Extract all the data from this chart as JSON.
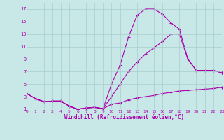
{
  "bg_color": "#c8e8e8",
  "grid_color": "#a8cccc",
  "line_color": "#aa00aa",
  "xlabel": "Windchill (Refroidissement éolien,°C)",
  "xlim": [
    0,
    23
  ],
  "ylim": [
    1,
    18
  ],
  "xticks": [
    0,
    1,
    2,
    3,
    4,
    5,
    6,
    7,
    8,
    9,
    10,
    11,
    12,
    13,
    14,
    15,
    16,
    17,
    18,
    19,
    20,
    21,
    22,
    23
  ],
  "yticks": [
    1,
    3,
    5,
    7,
    9,
    11,
    13,
    15,
    17
  ],
  "curve1_x": [
    0,
    1,
    2,
    3,
    4,
    5,
    6,
    7,
    8,
    9,
    10,
    11,
    12,
    13,
    14,
    15,
    16,
    17,
    18,
    19,
    20,
    21,
    22,
    23
  ],
  "curve1_y": [
    3.5,
    2.7,
    2.2,
    2.3,
    2.3,
    1.5,
    1.0,
    1.2,
    1.3,
    1.1,
    5.0,
    8.0,
    12.5,
    16.0,
    17.0,
    17.0,
    16.2,
    14.8,
    13.8,
    9.0,
    7.2,
    7.2,
    7.2,
    6.8
  ],
  "curve2_x": [
    0,
    1,
    2,
    3,
    4,
    5,
    6,
    7,
    8,
    9,
    10,
    11,
    12,
    13,
    14,
    15,
    16,
    17,
    18,
    19,
    20,
    21,
    22,
    23
  ],
  "curve2_y": [
    3.5,
    2.7,
    2.2,
    2.3,
    2.3,
    1.5,
    1.0,
    1.2,
    1.3,
    1.1,
    3.0,
    5.0,
    7.0,
    8.5,
    9.8,
    10.8,
    11.8,
    13.0,
    13.0,
    9.0,
    7.2,
    7.2,
    7.2,
    6.8
  ],
  "curve3_x": [
    0,
    1,
    2,
    3,
    4,
    5,
    6,
    7,
    8,
    9,
    10,
    11,
    12,
    13,
    14,
    15,
    16,
    17,
    18,
    19,
    20,
    21,
    22,
    23
  ],
  "curve3_y": [
    3.5,
    2.7,
    2.2,
    2.3,
    2.3,
    1.5,
    1.0,
    1.2,
    1.3,
    1.1,
    1.8,
    2.0,
    2.5,
    2.8,
    3.0,
    3.2,
    3.5,
    3.7,
    3.9,
    4.0,
    4.1,
    4.2,
    4.3,
    4.5
  ]
}
